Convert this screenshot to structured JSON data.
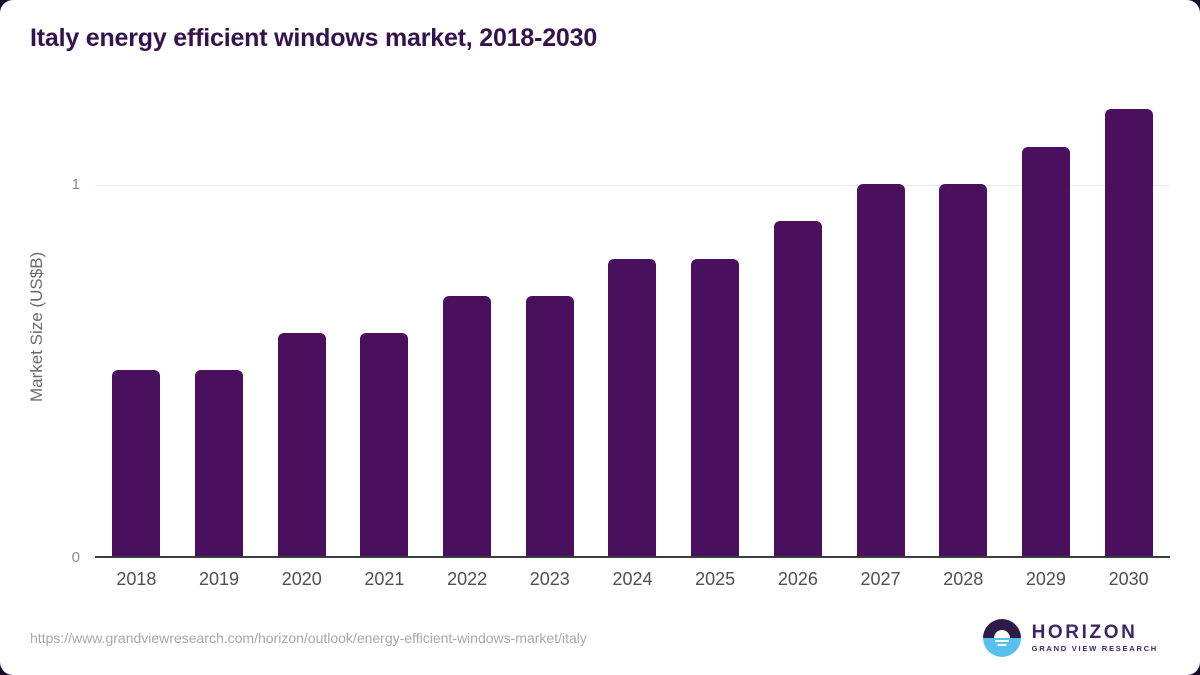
{
  "chart_data": {
    "type": "bar",
    "title": "Italy energy efficient windows market, 2018-2030",
    "xlabel": "",
    "ylabel": "Market Size (US$B)",
    "categories": [
      "2018",
      "2019",
      "2020",
      "2021",
      "2022",
      "2023",
      "2024",
      "2025",
      "2026",
      "2027",
      "2028",
      "2029",
      "2030"
    ],
    "values": [
      0.5,
      0.5,
      0.6,
      0.6,
      0.7,
      0.7,
      0.8,
      0.8,
      0.9,
      1.0,
      1.0,
      1.1,
      1.2
    ],
    "ylim": [
      0,
      1.25
    ],
    "yticks": [
      "0",
      "1"
    ],
    "grid": "single light horizontal gridline at y=1",
    "legend": "none",
    "bar_color": "#4a105e"
  },
  "footer": {
    "source_url": "https://www.grandviewresearch.com/horizon/outlook/energy-efficient-windows-market/italy",
    "logo": {
      "brand": "HORIZON",
      "sub_brand": "GRAND VIEW RESEARCH"
    }
  },
  "colors": {
    "background": "#ffffff",
    "page_corner": "#190b2b",
    "bar": "#4a105e",
    "title_text": "#33124d",
    "axis_line": "#3d3d3d",
    "gridline": "#e8e8e8",
    "y_tick_text": "#8c8c8c",
    "x_tick_text": "#4f4f4f",
    "y_axis_title_text": "#6a6a6a",
    "url_text": "#a8a8a8",
    "logo_purple": "#2d1b4a",
    "logo_blue": "#57c0ed",
    "logo_text": "#3f2566"
  }
}
